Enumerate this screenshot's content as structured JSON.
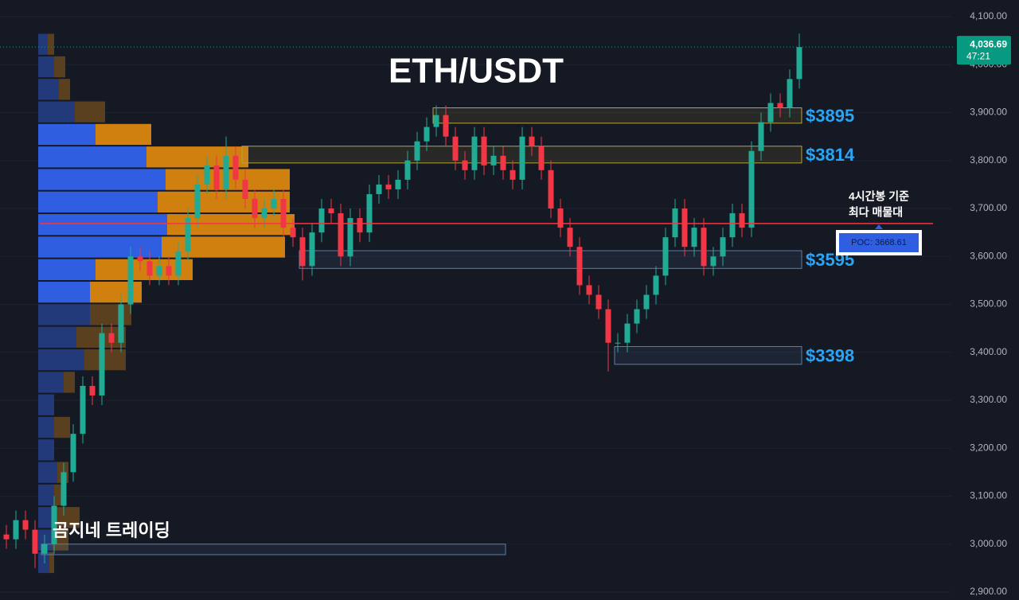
{
  "chart_data": {
    "type": "candlestick",
    "title": "ETH/USDT",
    "watermark": "곰지네 트레이딩",
    "annotation": [
      "4시간봉 기준",
      "최다 매물대"
    ],
    "up_color": "#22ab94",
    "down_color": "#f23645",
    "grid": true,
    "ylim": [
      2883.4,
      4134.9
    ],
    "yticks": [
      {
        "value": 4100,
        "label": "4,100.00"
      },
      {
        "value": 4000,
        "label": "4,000.00"
      },
      {
        "value": 3900,
        "label": "3,900.00"
      },
      {
        "value": 3800,
        "label": "3,800.00"
      },
      {
        "value": 3700,
        "label": "3,700.00"
      },
      {
        "value": 3600,
        "label": "3,600.00"
      },
      {
        "value": 3500,
        "label": "3,500.00"
      },
      {
        "value": 3400,
        "label": "3,400.00"
      },
      {
        "value": 3300,
        "label": "3,300.00"
      },
      {
        "value": 3200,
        "label": "3,200.00"
      },
      {
        "value": 3100,
        "label": "3,100.00"
      },
      {
        "value": 3000,
        "label": "3,000.00"
      },
      {
        "value": 2900,
        "label": "2,900.00"
      }
    ],
    "open": [
      3020,
      3010,
      3050,
      3030,
      2980,
      3000,
      3080,
      3150,
      3230,
      3330,
      3310,
      3440,
      3420,
      3500,
      3600,
      3590,
      3560,
      3580,
      3560,
      3610,
      3680,
      3750,
      3790,
      3740,
      3810,
      3760,
      3720,
      3680,
      3700,
      3720,
      3660,
      3640,
      3580,
      3650,
      3700,
      3690,
      3600,
      3680,
      3650,
      3730,
      3750,
      3740,
      3760,
      3800,
      3840,
      3870,
      3895,
      3850,
      3800,
      3780,
      3850,
      3790,
      3810,
      3780,
      3760,
      3850,
      3830,
      3780,
      3700,
      3660,
      3620,
      3540,
      3520,
      3490,
      3420,
      3420,
      3460,
      3490,
      3520,
      3560,
      3640,
      3700,
      3620,
      3660,
      3580,
      3600,
      3640,
      3690,
      3660,
      3820,
      3880,
      3920,
      3910,
      3970
    ],
    "high": [
      3040,
      3070,
      3070,
      3050,
      3020,
      3100,
      3170,
      3250,
      3350,
      3350,
      3460,
      3460,
      3520,
      3620,
      3620,
      3610,
      3600,
      3600,
      3630,
      3700,
      3770,
      3810,
      3810,
      3850,
      3830,
      3780,
      3740,
      3720,
      3740,
      3740,
      3680,
      3660,
      3670,
      3720,
      3720,
      3710,
      3700,
      3700,
      3750,
      3770,
      3770,
      3780,
      3820,
      3860,
      3890,
      3915,
      3915,
      3870,
      3820,
      3870,
      3870,
      3830,
      3830,
      3800,
      3870,
      3870,
      3850,
      3800,
      3720,
      3680,
      3640,
      3560,
      3540,
      3510,
      3440,
      3480,
      3510,
      3540,
      3580,
      3660,
      3720,
      3720,
      3680,
      3680,
      3620,
      3660,
      3710,
      3710,
      3840,
      3900,
      3940,
      3940,
      3990,
      4065
    ],
    "low": [
      2990,
      2990,
      3010,
      2950,
      2960,
      2980,
      3060,
      3130,
      3210,
      3290,
      3290,
      3400,
      3400,
      3480,
      3570,
      3540,
      3540,
      3540,
      3540,
      3590,
      3660,
      3730,
      3720,
      3720,
      3740,
      3700,
      3660,
      3660,
      3680,
      3640,
      3620,
      3550,
      3560,
      3630,
      3670,
      3580,
      3580,
      3630,
      3630,
      3710,
      3720,
      3720,
      3740,
      3780,
      3820,
      3850,
      3830,
      3780,
      3760,
      3760,
      3770,
      3770,
      3760,
      3740,
      3740,
      3810,
      3760,
      3680,
      3640,
      3600,
      3520,
      3500,
      3470,
      3360,
      3400,
      3400,
      3440,
      3470,
      3500,
      3540,
      3620,
      3600,
      3600,
      3560,
      3560,
      3580,
      3620,
      3640,
      3640,
      3800,
      3860,
      3890,
      3890,
      3950
    ],
    "close": [
      3010,
      3050,
      3030,
      2980,
      3000,
      3080,
      3150,
      3230,
      3330,
      3310,
      3440,
      3420,
      3500,
      3600,
      3590,
      3560,
      3580,
      3560,
      3610,
      3680,
      3750,
      3790,
      3740,
      3810,
      3760,
      3720,
      3680,
      3700,
      3720,
      3660,
      3640,
      3580,
      3650,
      3700,
      3690,
      3600,
      3680,
      3650,
      3730,
      3750,
      3740,
      3760,
      3800,
      3840,
      3870,
      3895,
      3850,
      3800,
      3780,
      3850,
      3790,
      3810,
      3780,
      3760,
      3850,
      3830,
      3780,
      3700,
      3660,
      3620,
      3540,
      3520,
      3490,
      3420,
      3420,
      3460,
      3490,
      3520,
      3560,
      3640,
      3700,
      3620,
      3660,
      3580,
      3600,
      3640,
      3690,
      3660,
      3820,
      3880,
      3920,
      3910,
      3970,
      4036.69
    ],
    "last_price": {
      "value": 4036.69,
      "label": "4,036.69"
    },
    "countdown": "47:21",
    "last_color": "#089981",
    "poc": {
      "value": 3668.61,
      "label": "POC: 3668.61"
    },
    "poc_color": "#f23645",
    "zones": [
      {
        "label": "$3895",
        "low": 3878,
        "high": 3910,
        "start": 45,
        "end": 83,
        "color": "#b8a43a"
      },
      {
        "label": "$3814",
        "low": 3795,
        "high": 3830,
        "start": 25,
        "end": 83,
        "color": "#b8a43a"
      },
      {
        "label": "$3595",
        "low": 3575,
        "high": 3612,
        "start": 31,
        "end": 83,
        "color": "#5c7fa8"
      },
      {
        "label": "$3398",
        "low": 3375,
        "high": 3412,
        "start": 64,
        "end": 83,
        "color": "#5c7fa8"
      },
      {
        "low": 2978,
        "high": 3000,
        "start": 4,
        "end": 52,
        "color": "#5c7fa8"
      }
    ],
    "profile": {
      "bins": [
        4066,
        4019,
        3972,
        3925,
        3878,
        3831,
        3784,
        3737,
        3690,
        3643,
        3596,
        3549,
        3502,
        3455,
        3408,
        3361,
        3314,
        3267,
        3220,
        3173,
        3126,
        3079,
        3032,
        2985,
        2938
      ],
      "buy": [
        12,
        20,
        26,
        46,
        72,
        136,
        160,
        150,
        162,
        155,
        72,
        65,
        65,
        48,
        58,
        32,
        20,
        20,
        20,
        24,
        20,
        22,
        18,
        14
      ],
      "sell": [
        8,
        14,
        14,
        38,
        70,
        128,
        156,
        166,
        160,
        155,
        122,
        65,
        52,
        62,
        52,
        14,
        0,
        20,
        0,
        14,
        12,
        30,
        20,
        6
      ],
      "value_area": [
        3502,
        3878
      ],
      "buy_color": "#2f5fe0",
      "sell_color": "#d9860f",
      "buy_dim_color": "#223a7a",
      "sell_dim_color": "#5e4220"
    }
  }
}
